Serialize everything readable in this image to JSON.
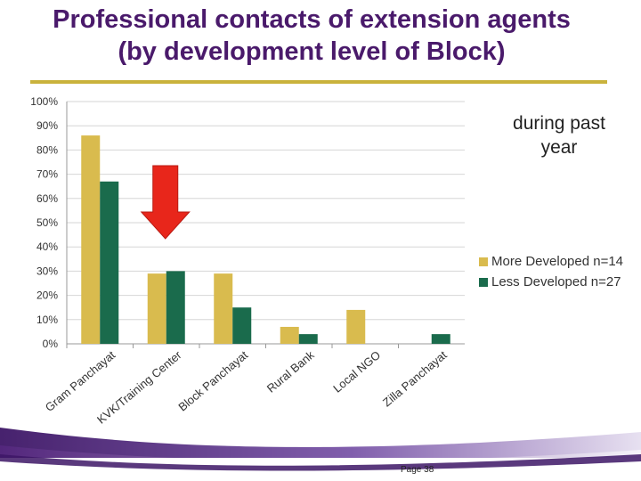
{
  "title_line1": "Professional contacts of extension agents",
  "title_line2": "(by development level of Block)",
  "note_line1": "during past",
  "note_line2": "year",
  "page_label": "Page 38",
  "colors": {
    "title": "#4a1a6b",
    "series1": "#d9bb4e",
    "series2": "#1a6b4c",
    "arrow": "#e8261b",
    "wave": "#5b2a86"
  },
  "chart_data": {
    "type": "bar",
    "categories": [
      "Gram Panchayat",
      "KVK/Training Center",
      "Block Panchayat",
      "Rural Bank",
      "Local NGO",
      "Zilla Panchayat"
    ],
    "series": [
      {
        "name": "More Developed n=14",
        "values": [
          86,
          29,
          29,
          7,
          14,
          0
        ]
      },
      {
        "name": "Less Developed n=27",
        "values": [
          67,
          30,
          15,
          4,
          0,
          4
        ]
      }
    ],
    "ylim": [
      0,
      100
    ],
    "yticks": [
      "0%",
      "10%",
      "20%",
      "30%",
      "40%",
      "50%",
      "60%",
      "70%",
      "80%",
      "90%",
      "100%"
    ],
    "grid": true,
    "legend_position": "right"
  }
}
